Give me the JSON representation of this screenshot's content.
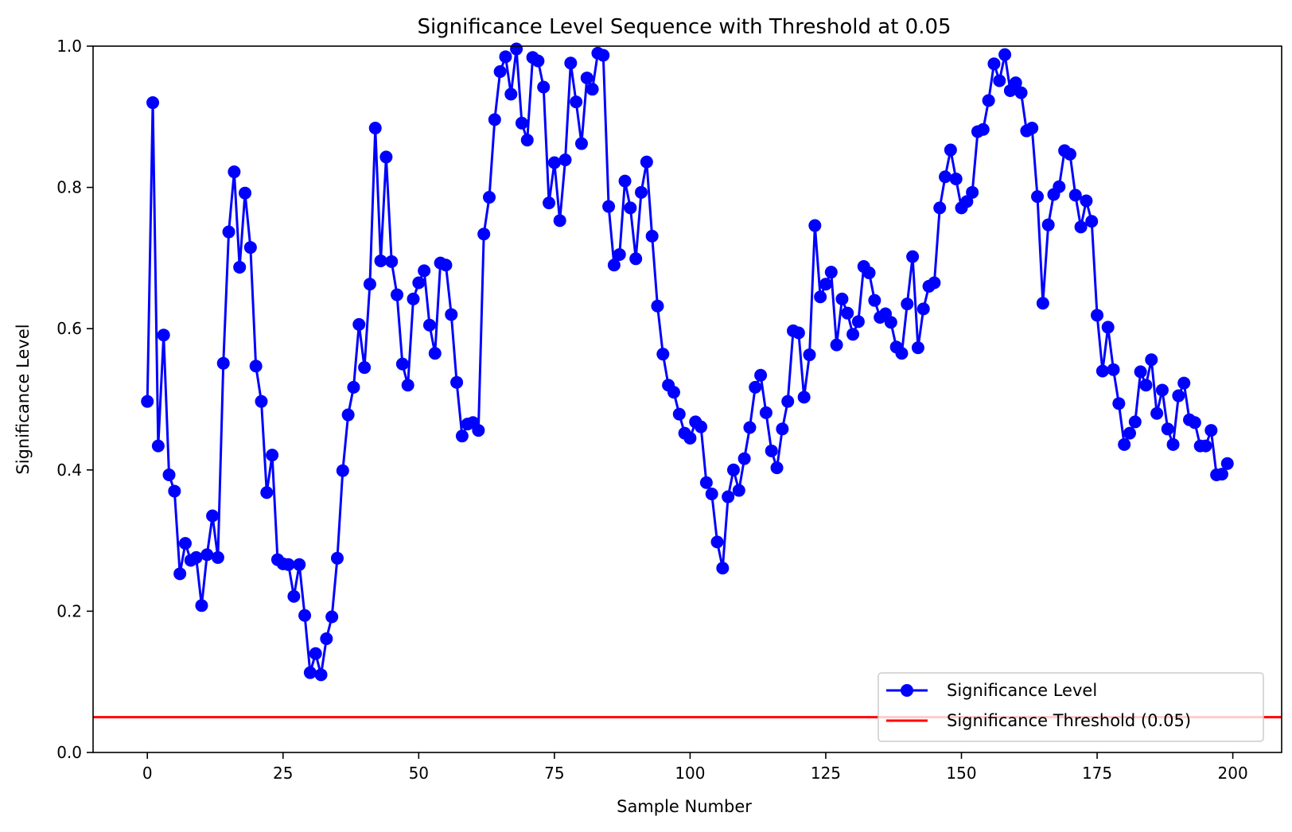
{
  "chart_data": {
    "type": "line",
    "title": "Significance Level Sequence with Threshold at 0.05",
    "xlabel": "Sample Number",
    "ylabel": "Significance Level",
    "xlim": [
      -10,
      209
    ],
    "ylim": [
      0.0,
      1.0
    ],
    "x_ticks": [
      0,
      25,
      50,
      75,
      100,
      125,
      150,
      175,
      200
    ],
    "x_tick_labels": [
      "0",
      "25",
      "50",
      "75",
      "100",
      "125",
      "150",
      "175",
      "200"
    ],
    "y_ticks": [
      0.0,
      0.2,
      0.4,
      0.6,
      0.8,
      1.0
    ],
    "y_tick_labels": [
      "0.0",
      "0.2",
      "0.4",
      "0.6",
      "0.8",
      "1.0"
    ],
    "grid": false,
    "legend_position": "lower-right",
    "series": [
      {
        "name": "Significance Level",
        "color": "#0000ff",
        "marker": "circle",
        "x_start": 0,
        "values": [
          0.497,
          0.92,
          0.434,
          0.591,
          0.393,
          0.37,
          0.253,
          0.296,
          0.272,
          0.276,
          0.208,
          0.28,
          0.335,
          0.276,
          0.551,
          0.737,
          0.822,
          0.687,
          0.792,
          0.715,
          0.547,
          0.497,
          0.368,
          0.421,
          0.273,
          0.267,
          0.266,
          0.221,
          0.266,
          0.194,
          0.113,
          0.14,
          0.11,
          0.161,
          0.192,
          0.275,
          0.399,
          0.478,
          0.517,
          0.606,
          0.545,
          0.663,
          0.884,
          0.696,
          0.843,
          0.695,
          0.648,
          0.55,
          0.52,
          0.642,
          0.665,
          0.682,
          0.605,
          0.565,
          0.693,
          0.69,
          0.62,
          0.524,
          0.448,
          0.465,
          0.467,
          0.456,
          0.734,
          0.786,
          0.896,
          0.964,
          0.985,
          0.932,
          0.996,
          0.891,
          0.867,
          0.984,
          0.979,
          0.942,
          0.778,
          0.835,
          0.753,
          0.839,
          0.976,
          0.921,
          0.862,
          0.955,
          0.939,
          0.99,
          0.987,
          0.773,
          0.69,
          0.705,
          0.809,
          0.771,
          0.699,
          0.793,
          0.836,
          0.731,
          0.632,
          0.564,
          0.52,
          0.51,
          0.479,
          0.452,
          0.445,
          0.468,
          0.461,
          0.382,
          0.366,
          0.298,
          0.261,
          0.362,
          0.4,
          0.371,
          0.416,
          0.46,
          0.517,
          0.534,
          0.481,
          0.427,
          0.403,
          0.458,
          0.497,
          0.597,
          0.594,
          0.503,
          0.563,
          0.746,
          0.645,
          0.663,
          0.68,
          0.577,
          0.642,
          0.622,
          0.592,
          0.61,
          0.688,
          0.679,
          0.64,
          0.616,
          0.621,
          0.609,
          0.574,
          0.565,
          0.635,
          0.702,
          0.573,
          0.628,
          0.66,
          0.665,
          0.771,
          0.815,
          0.853,
          0.812,
          0.771,
          0.78,
          0.793,
          0.879,
          0.882,
          0.923,
          0.975,
          0.951,
          0.988,
          0.937,
          0.948,
          0.934,
          0.88,
          0.884,
          0.787,
          0.636,
          0.747,
          0.79,
          0.801,
          0.852,
          0.847,
          0.789,
          0.744,
          0.781,
          0.752,
          0.619,
          0.54,
          0.602,
          0.542,
          0.494,
          0.436,
          0.452,
          0.468,
          0.539,
          0.52,
          0.556,
          0.48,
          0.513,
          0.458,
          0.436,
          0.505,
          0.523,
          0.471,
          0.467,
          0.434,
          0.434,
          0.456,
          0.393,
          0.394,
          0.409
        ]
      },
      {
        "name": "Significance Threshold (0.05)",
        "color": "#ff0000",
        "type": "hline",
        "y": 0.05
      }
    ]
  }
}
